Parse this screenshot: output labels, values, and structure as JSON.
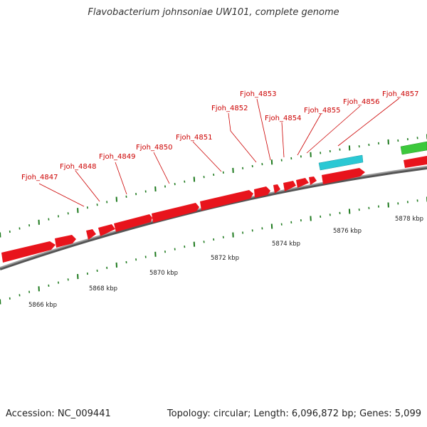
{
  "title": "Flavobacterium johnsoniae UW101, complete genome",
  "footer": {
    "accession": "Accession: NC_009441",
    "summary": "Topology: circular; Length: 6,096,872 bp; Genes: 5,099"
  },
  "colors": {
    "cds": "#e8141c",
    "cds_dark": "#b00a10",
    "rna": "#2bc8d4",
    "other": "#3cc83c",
    "backbone": "#777777",
    "tick": "#1e7a1e",
    "label": "#cc0000"
  },
  "gene_labels": [
    "Fjoh_4847",
    "Fjoh_4848",
    "Fjoh_4849",
    "Fjoh_4850",
    "Fjoh_4851",
    "Fjoh_4852",
    "Fjoh_4853",
    "Fjoh_4854",
    "Fjoh_4855",
    "Fjoh_4856",
    "Fjoh_4857"
  ],
  "kbp_labels": [
    "5866 kbp",
    "5868 kbp",
    "5870 kbp",
    "5872 kbp",
    "5874 kbp",
    "5876 kbp",
    "5878 kbp"
  ]
}
